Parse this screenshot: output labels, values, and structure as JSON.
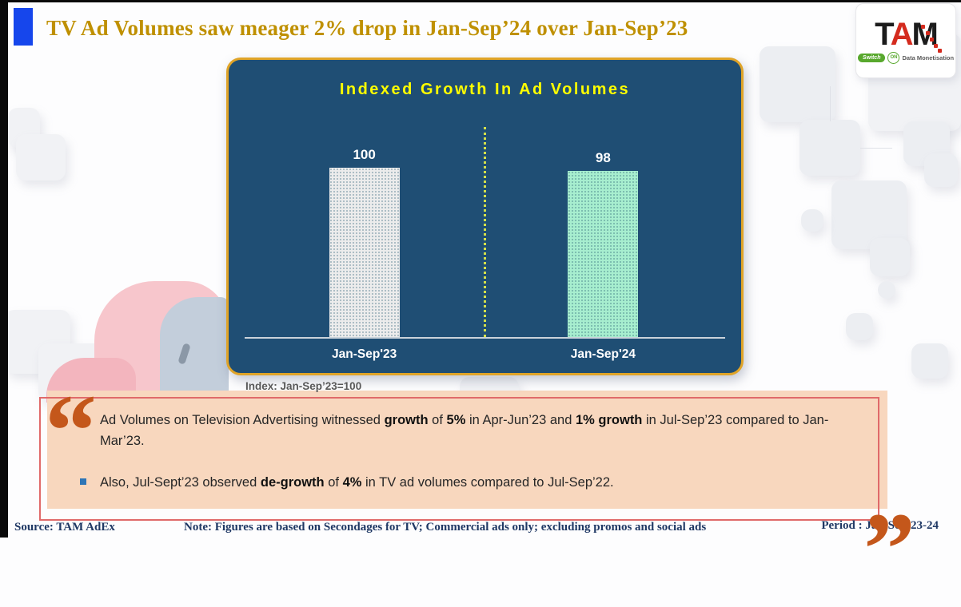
{
  "slide": {
    "title": "TV Ad Volumes saw meager 2% drop in Jan-Sep’24 over Jan-Sep’23",
    "title_color": "#bf9000"
  },
  "logo": {
    "brand_t": "T",
    "brand_a": "A",
    "brand_m": "M",
    "tagline_switch": "Switch",
    "tagline_on": "ON",
    "tagline_text": "Data Monetisation"
  },
  "chart_data": {
    "type": "bar",
    "title": "Indexed Growth In Ad Volumes",
    "categories": [
      "Jan-Sep'23",
      "Jan-Sep'24"
    ],
    "values": [
      100,
      98
    ],
    "bar_colors": [
      "#ececec",
      "#a7eecf"
    ],
    "ylim": [
      0,
      110
    ],
    "xlabel": "",
    "ylabel": "",
    "grid": false,
    "legend": false,
    "panel_bg": "#1f4e74",
    "panel_border": "#e0a428",
    "title_color": "#ffff00",
    "value_label_color": "#ffffff",
    "note": "Index: Jan-Sep’23=100"
  },
  "quote": {
    "open_mark": "“",
    "close_mark": "”",
    "bullets": [
      {
        "parts": [
          {
            "t": "Ad Volumes on Television Advertising witnessed ",
            "b": false
          },
          {
            "t": "growth",
            "b": true
          },
          {
            "t": " of ",
            "b": false
          },
          {
            "t": "5%",
            "b": true
          },
          {
            "t": " in Apr-Jun’23 and ",
            "b": false
          },
          {
            "t": "1% growth",
            "b": true
          },
          {
            "t": " in Jul-Sep’23 compared to Jan-Mar’23.",
            "b": false
          }
        ]
      },
      {
        "parts": [
          {
            "t": "Also, Jul-Sept’23 observed ",
            "b": false
          },
          {
            "t": "de-growth",
            "b": true
          },
          {
            "t": " of ",
            "b": false
          },
          {
            "t": "4%",
            "b": true
          },
          {
            "t": " in TV ad volumes compared to Jul-Sep’22.",
            "b": false
          }
        ]
      }
    ]
  },
  "footer": {
    "source": "Source: TAM AdEx",
    "note": "Note: Figures are based on Secondages for TV; Commercial ads only; excluding promos and social ads",
    "period": "Period : Jan-Sep’23-24"
  }
}
